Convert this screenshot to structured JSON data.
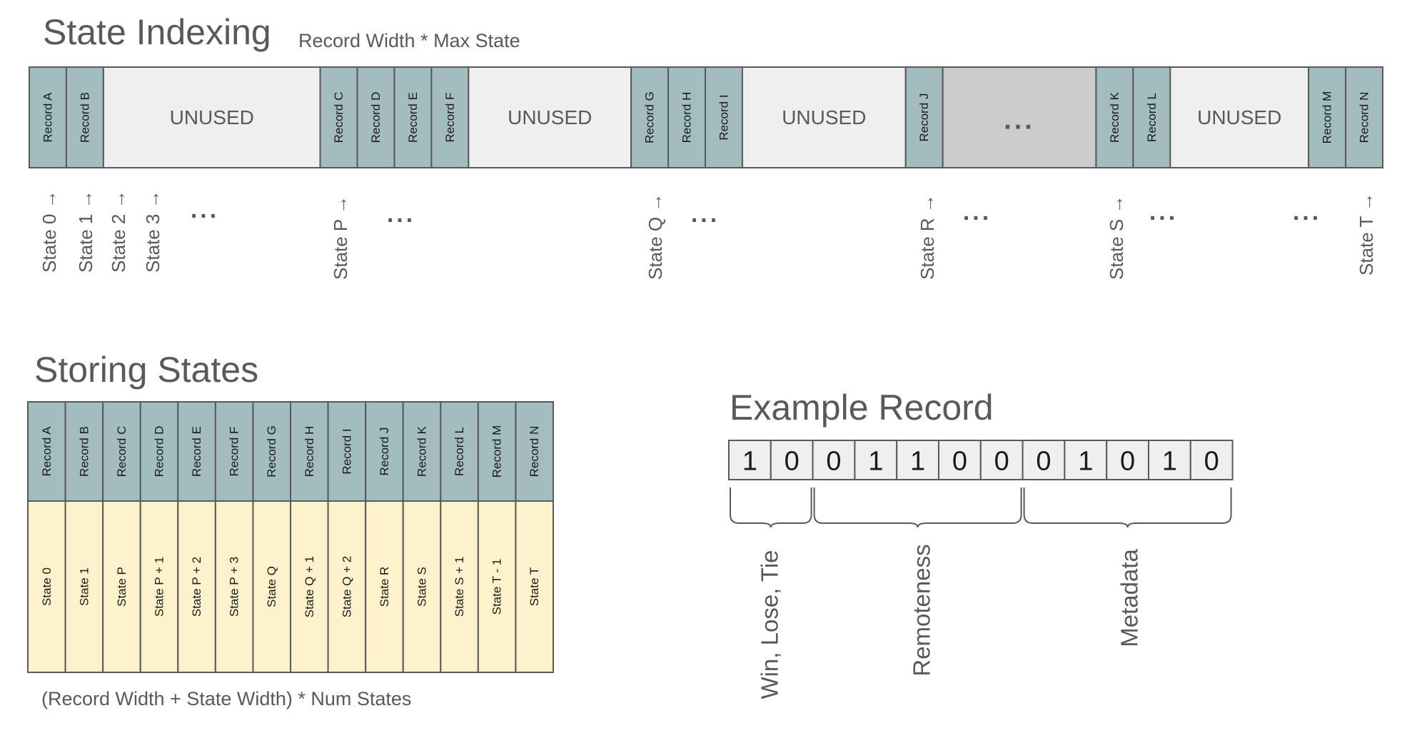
{
  "state_indexing": {
    "title": "State Indexing",
    "subtitle": "Record Width * Max State",
    "blocks": [
      {
        "type": "record",
        "label": "Record A"
      },
      {
        "type": "record",
        "label": "Record B"
      },
      {
        "type": "unused",
        "label": "UNUSED"
      },
      {
        "type": "record",
        "label": "Record C"
      },
      {
        "type": "record",
        "label": "Record D"
      },
      {
        "type": "record",
        "label": "Record E"
      },
      {
        "type": "record",
        "label": "Record F"
      },
      {
        "type": "unused",
        "label": "UNUSED"
      },
      {
        "type": "record",
        "label": "Record G"
      },
      {
        "type": "record",
        "label": "Record H"
      },
      {
        "type": "record",
        "label": "Record I"
      },
      {
        "type": "unused",
        "label": "UNUSED"
      },
      {
        "type": "record",
        "label": "Record J"
      },
      {
        "type": "ellipsis",
        "label": "..."
      },
      {
        "type": "record",
        "label": "Record K"
      },
      {
        "type": "record",
        "label": "Record L"
      },
      {
        "type": "unused",
        "label": "UNUSED"
      },
      {
        "type": "record",
        "label": "Record M"
      },
      {
        "type": "record",
        "label": "Record N"
      }
    ],
    "state_labels": [
      "State 0 →",
      "State 1 →",
      "State 2 →",
      "State 3 →",
      "State P →",
      "State Q →",
      "State R →",
      "State S →",
      "State T →"
    ],
    "ellipsis": "..."
  },
  "storing_states": {
    "title": "Storing States",
    "records": [
      "Record A",
      "Record B",
      "Record C",
      "Record D",
      "Record E",
      "Record F",
      "Record G",
      "Record H",
      "Record I",
      "Record J",
      "Record K",
      "Record L",
      "Record M",
      "Record N"
    ],
    "states": [
      "State 0",
      "State 1",
      "State P",
      "State P + 1",
      "State P + 2",
      "State P + 3",
      "State Q",
      "State Q + 1",
      "State Q + 2",
      "State R",
      "State S",
      "State S + 1",
      "State T - 1",
      "State T"
    ],
    "formula": "(Record Width + State Width) * Num States"
  },
  "example_record": {
    "title": "Example Record",
    "bits": [
      "1",
      "0",
      "0",
      "1",
      "1",
      "0",
      "0",
      "0",
      "1",
      "0",
      "1",
      "0"
    ],
    "groups": [
      {
        "label": "Win, Lose, Tie",
        "bits": 2
      },
      {
        "label": "Remoteness",
        "bits": 5
      },
      {
        "label": "Metadata",
        "bits": 5
      }
    ]
  },
  "colors": {
    "record_fill": "#a2bcc0",
    "unused_fill": "#efefef",
    "ellipsis_fill": "#cccccc",
    "state_fill": "#fdf2cc",
    "bit_fill": "#efefef",
    "border": "#595959",
    "text_gray": "#595959"
  }
}
